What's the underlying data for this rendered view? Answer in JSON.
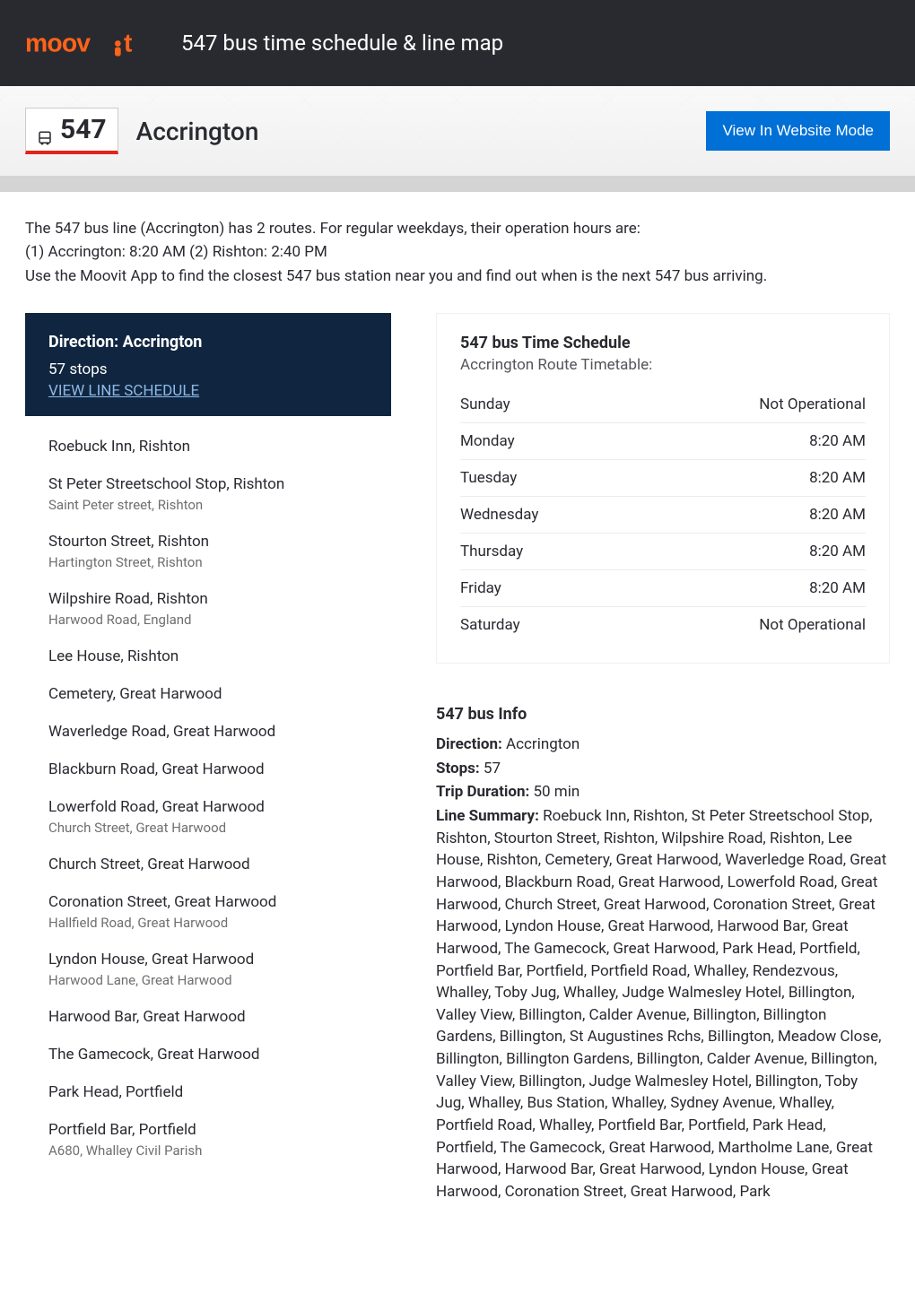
{
  "header": {
    "logo_text": "moovit",
    "title": "547 bus time schedule & line map",
    "line_number": "547",
    "destination": "Accrington",
    "website_mode_label": "View In Website Mode"
  },
  "intro": {
    "line1": "The 547 bus line (Accrington) has 2 routes. For regular weekdays, their operation hours are:",
    "line2": "(1) Accrington: 8:20 AM (2) Rishton: 2:40 PM",
    "line3": "Use the Moovit App to find the closest 547 bus station near you and find out when is the next 547 bus arriving."
  },
  "direction_header": {
    "title": "Direction: Accrington",
    "stop_count": "57 stops",
    "schedule_link": "VIEW LINE SCHEDULE"
  },
  "stops": [
    {
      "name": "Roebuck Inn, Rishton",
      "sub": ""
    },
    {
      "name": "St Peter Streetschool Stop, Rishton",
      "sub": "Saint Peter street, Rishton"
    },
    {
      "name": "Stourton Street, Rishton",
      "sub": "Hartington Street, Rishton"
    },
    {
      "name": "Wilpshire Road, Rishton",
      "sub": "Harwood Road, England"
    },
    {
      "name": "Lee House, Rishton",
      "sub": ""
    },
    {
      "name": "Cemetery, Great Harwood",
      "sub": ""
    },
    {
      "name": "Waverledge Road, Great Harwood",
      "sub": ""
    },
    {
      "name": "Blackburn Road, Great Harwood",
      "sub": ""
    },
    {
      "name": "Lowerfold Road, Great Harwood",
      "sub": "Church Street, Great Harwood"
    },
    {
      "name": "Church Street, Great Harwood",
      "sub": ""
    },
    {
      "name": "Coronation Street, Great Harwood",
      "sub": "Hallfield Road, Great Harwood"
    },
    {
      "name": "Lyndon House, Great Harwood",
      "sub": "Harwood Lane, Great Harwood"
    },
    {
      "name": "Harwood Bar, Great Harwood",
      "sub": ""
    },
    {
      "name": "The Gamecock, Great Harwood",
      "sub": ""
    },
    {
      "name": "Park Head, Portfield",
      "sub": ""
    },
    {
      "name": "Portfield Bar, Portfield",
      "sub": "A680, Whalley Civil Parish"
    }
  ],
  "schedule": {
    "title": "547 bus Time Schedule",
    "subtitle": "Accrington Route Timetable:",
    "rows": [
      {
        "day": "Sunday",
        "time": "Not Operational"
      },
      {
        "day": "Monday",
        "time": "8:20 AM"
      },
      {
        "day": "Tuesday",
        "time": "8:20 AM"
      },
      {
        "day": "Wednesday",
        "time": "8:20 AM"
      },
      {
        "day": "Thursday",
        "time": "8:20 AM"
      },
      {
        "day": "Friday",
        "time": "8:20 AM"
      },
      {
        "day": "Saturday",
        "time": "Not Operational"
      }
    ]
  },
  "info": {
    "title": "547 bus Info",
    "direction_label": "Direction:",
    "direction_value": " Accrington",
    "stops_label": "Stops:",
    "stops_value": " 57",
    "duration_label": "Trip Duration:",
    "duration_value": " 50 min",
    "summary_label": "Line Summary:",
    "summary_value": " Roebuck Inn, Rishton, St Peter Streetschool Stop, Rishton, Stourton Street, Rishton, Wilpshire Road, Rishton, Lee House, Rishton, Cemetery, Great Harwood, Waverledge Road, Great Harwood, Blackburn Road, Great Harwood, Lowerfold Road, Great Harwood, Church Street, Great Harwood, Coronation Street, Great Harwood, Lyndon House, Great Harwood, Harwood Bar, Great Harwood, The Gamecock, Great Harwood, Park Head, Portfield, Portfield Bar, Portfield, Portfield Road, Whalley, Rendezvous, Whalley, Toby Jug, Whalley, Judge Walmesley Hotel, Billington, Valley View, Billington, Calder Avenue, Billington, Billington Gardens, Billington, St Augustines Rchs, Billington, Meadow Close, Billington, Billington Gardens, Billington, Calder Avenue, Billington, Valley View, Billington, Judge Walmesley Hotel, Billington, Toby Jug, Whalley, Bus Station, Whalley, Sydney Avenue, Whalley, Portfield Road, Whalley, Portfield Bar, Portfield, Park Head, Portfield, The Gamecock, Great Harwood, Martholme Lane, Great Harwood, Harwood Bar, Great Harwood, Lyndon House, Great Harwood, Coronation Street, Great Harwood, Park"
  },
  "colors": {
    "brand_orange": "#ff6319",
    "header_bg": "#292a30",
    "accent_red": "#e2231a",
    "button_blue": "#006fd6",
    "direction_bg": "#10253f",
    "link_blue": "#8cb8e8",
    "gray_strip": "#d4d4d4",
    "sub_text": "#6f6f6f"
  }
}
